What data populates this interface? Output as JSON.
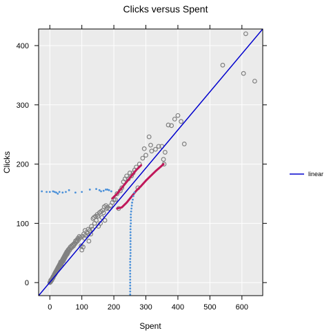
{
  "chart_data": {
    "type": "scatter",
    "title": "Clicks versus Spent",
    "xlabel": "Spent",
    "ylabel": "Clicks",
    "xlim": [
      -35,
      665
    ],
    "ylim": [
      -22,
      428
    ],
    "x_ticks": [
      0,
      100,
      200,
      300,
      400,
      500,
      600
    ],
    "y_ticks": [
      0,
      100,
      200,
      300,
      400
    ],
    "grid": true,
    "legend_position": "right",
    "legend": [
      {
        "label": "linear",
        "color": "#0000CD"
      }
    ],
    "colors": {
      "panel": "#EBEBEB",
      "grid": "#FFFFFF",
      "points": "#808080",
      "fit_line": "#0000CD",
      "smooth_curves": "#C0185A",
      "sample_dots": "#4A90D9"
    },
    "series": [
      {
        "type": "scatter",
        "points": [
          [
            0,
            0
          ],
          [
            1,
            1
          ],
          [
            2,
            1
          ],
          [
            3,
            2
          ],
          [
            3,
            4
          ],
          [
            4,
            3
          ],
          [
            5,
            5
          ],
          [
            6,
            4
          ],
          [
            7,
            6
          ],
          [
            8,
            8
          ],
          [
            9,
            7
          ],
          [
            10,
            10
          ],
          [
            11,
            9
          ],
          [
            12,
            11
          ],
          [
            13,
            12
          ],
          [
            14,
            14
          ],
          [
            15,
            13
          ],
          [
            16,
            16
          ],
          [
            17,
            15
          ],
          [
            18,
            18
          ],
          [
            19,
            17
          ],
          [
            20,
            20
          ],
          [
            21,
            19
          ],
          [
            22,
            22
          ],
          [
            23,
            21
          ],
          [
            24,
            24
          ],
          [
            25,
            23
          ],
          [
            26,
            26
          ],
          [
            27,
            25
          ],
          [
            28,
            28
          ],
          [
            29,
            27
          ],
          [
            30,
            30
          ],
          [
            31,
            28
          ],
          [
            32,
            32
          ],
          [
            33,
            30
          ],
          [
            34,
            35
          ],
          [
            35,
            33
          ],
          [
            36,
            31
          ],
          [
            37,
            36
          ],
          [
            38,
            34
          ],
          [
            39,
            38
          ],
          [
            40,
            37
          ],
          [
            41,
            40
          ],
          [
            42,
            36
          ],
          [
            43,
            42
          ],
          [
            44,
            39
          ],
          [
            45,
            44
          ],
          [
            46,
            41
          ],
          [
            47,
            46
          ],
          [
            48,
            43
          ],
          [
            49,
            48
          ],
          [
            50,
            45
          ],
          [
            51,
            50
          ],
          [
            52,
            47
          ],
          [
            53,
            52
          ],
          [
            54,
            48
          ],
          [
            55,
            53
          ],
          [
            56,
            50
          ],
          [
            57,
            55
          ],
          [
            58,
            52
          ],
          [
            60,
            57
          ],
          [
            62,
            55
          ],
          [
            64,
            60
          ],
          [
            66,
            58
          ],
          [
            68,
            62
          ],
          [
            70,
            60
          ],
          [
            72,
            64
          ],
          [
            74,
            62
          ],
          [
            76,
            66
          ],
          [
            78,
            65
          ],
          [
            80,
            70
          ],
          [
            82,
            68
          ],
          [
            84,
            72
          ],
          [
            86,
            70
          ],
          [
            88,
            75
          ],
          [
            90,
            73
          ],
          [
            92,
            78
          ],
          [
            95,
            76
          ],
          [
            98,
            62
          ],
          [
            100,
            55
          ],
          [
            102,
            78
          ],
          [
            104,
            60
          ],
          [
            106,
            82
          ],
          [
            108,
            75
          ],
          [
            110,
            88
          ],
          [
            112,
            80
          ],
          [
            115,
            85
          ],
          [
            118,
            83
          ],
          [
            120,
            90
          ],
          [
            122,
            70
          ],
          [
            125,
            88
          ],
          [
            128,
            82
          ],
          [
            130,
            95
          ],
          [
            133,
            90
          ],
          [
            135,
            108
          ],
          [
            138,
            110
          ],
          [
            140,
            100
          ],
          [
            143,
            112
          ],
          [
            145,
            105
          ],
          [
            148,
            115
          ],
          [
            150,
            112
          ],
          [
            152,
            95
          ],
          [
            155,
            118
          ],
          [
            158,
            100
          ],
          [
            160,
            120
          ],
          [
            163,
            110
          ],
          [
            165,
            122
          ],
          [
            168,
            118
          ],
          [
            170,
            128
          ],
          [
            172,
            105
          ],
          [
            175,
            130
          ],
          [
            178,
            125
          ],
          [
            180,
            127
          ],
          [
            185,
            125
          ],
          [
            190,
            130
          ],
          [
            195,
            135
          ],
          [
            200,
            140
          ],
          [
            205,
            140
          ],
          [
            210,
            150
          ],
          [
            215,
            125
          ],
          [
            220,
            155
          ],
          [
            225,
            160
          ],
          [
            230,
            170
          ],
          [
            235,
            175
          ],
          [
            240,
            180
          ],
          [
            245,
            175
          ],
          [
            250,
            185
          ],
          [
            255,
            180
          ],
          [
            260,
            185
          ],
          [
            265,
            190
          ],
          [
            270,
            195
          ],
          [
            275,
            160
          ],
          [
            280,
            200
          ],
          [
            290,
            210
          ],
          [
            295,
            226
          ],
          [
            300,
            215
          ],
          [
            310,
            246
          ],
          [
            315,
            232
          ],
          [
            318,
            222
          ],
          [
            330,
            225
          ],
          [
            340,
            230
          ],
          [
            350,
            230
          ],
          [
            355,
            208
          ],
          [
            357,
            200
          ],
          [
            360,
            220
          ],
          [
            370,
            266
          ],
          [
            380,
            265
          ],
          [
            390,
            276
          ],
          [
            400,
            282
          ],
          [
            410,
            272
          ],
          [
            420,
            234
          ],
          [
            540,
            367
          ],
          [
            605,
            353
          ],
          [
            612,
            420
          ],
          [
            640,
            340
          ]
        ]
      },
      {
        "type": "line",
        "name": "linear",
        "color": "#0000CD",
        "x": [
          -35,
          665
        ],
        "y": [
          -22,
          428
        ]
      },
      {
        "type": "curve",
        "color": "#C0185A",
        "points": [
          [
            195,
            142
          ],
          [
            210,
            150
          ],
          [
            225,
            160
          ],
          [
            240,
            170
          ],
          [
            255,
            180
          ],
          [
            270,
            190
          ],
          [
            285,
            198
          ]
        ]
      },
      {
        "type": "curve",
        "color": "#C0185A",
        "points": [
          [
            210,
            125
          ],
          [
            225,
            127
          ],
          [
            240,
            135
          ],
          [
            255,
            145
          ],
          [
            270,
            155
          ],
          [
            285,
            163
          ],
          [
            300,
            172
          ],
          [
            315,
            180
          ],
          [
            330,
            188
          ],
          [
            345,
            195
          ],
          [
            355,
            200
          ]
        ]
      },
      {
        "type": "dots",
        "color": "#4A90D9",
        "points": [
          [
            -25,
            154
          ],
          [
            -10,
            153
          ],
          [
            0,
            153
          ],
          [
            10,
            154
          ],
          [
            15,
            153
          ],
          [
            20,
            152
          ],
          [
            25,
            150
          ],
          [
            30,
            153
          ],
          [
            40,
            152
          ],
          [
            50,
            153
          ],
          [
            60,
            156
          ],
          [
            80,
            152
          ],
          [
            100,
            153
          ],
          [
            125,
            157
          ],
          [
            145,
            158
          ],
          [
            155,
            156
          ],
          [
            160,
            154
          ],
          [
            168,
            155
          ],
          [
            175,
            157
          ],
          [
            180,
            157
          ],
          [
            185,
            156
          ],
          [
            192,
            154
          ]
        ]
      },
      {
        "type": "dots",
        "color": "#4A90D9",
        "points": [
          [
            251,
            -20
          ],
          [
            251,
            -15
          ],
          [
            251,
            -10
          ],
          [
            251,
            -5
          ],
          [
            251,
            0
          ],
          [
            251,
            5
          ],
          [
            251,
            10
          ],
          [
            251,
            15
          ],
          [
            251,
            20
          ],
          [
            251,
            25
          ],
          [
            251,
            30
          ],
          [
            251,
            35
          ],
          [
            251,
            40
          ],
          [
            252,
            45
          ],
          [
            252,
            50
          ],
          [
            252,
            55
          ],
          [
            252,
            60
          ],
          [
            252,
            65
          ],
          [
            252,
            70
          ],
          [
            252,
            75
          ],
          [
            252,
            80
          ],
          [
            252,
            85
          ],
          [
            252,
            90
          ],
          [
            252,
            95
          ],
          [
            253,
            100
          ],
          [
            253,
            105
          ],
          [
            253,
            110
          ],
          [
            253,
            115
          ],
          [
            254,
            120
          ],
          [
            255,
            125
          ],
          [
            256,
            130
          ],
          [
            257,
            135
          ],
          [
            259,
            140
          ],
          [
            261,
            146
          ],
          [
            264,
            152
          ]
        ]
      }
    ]
  }
}
